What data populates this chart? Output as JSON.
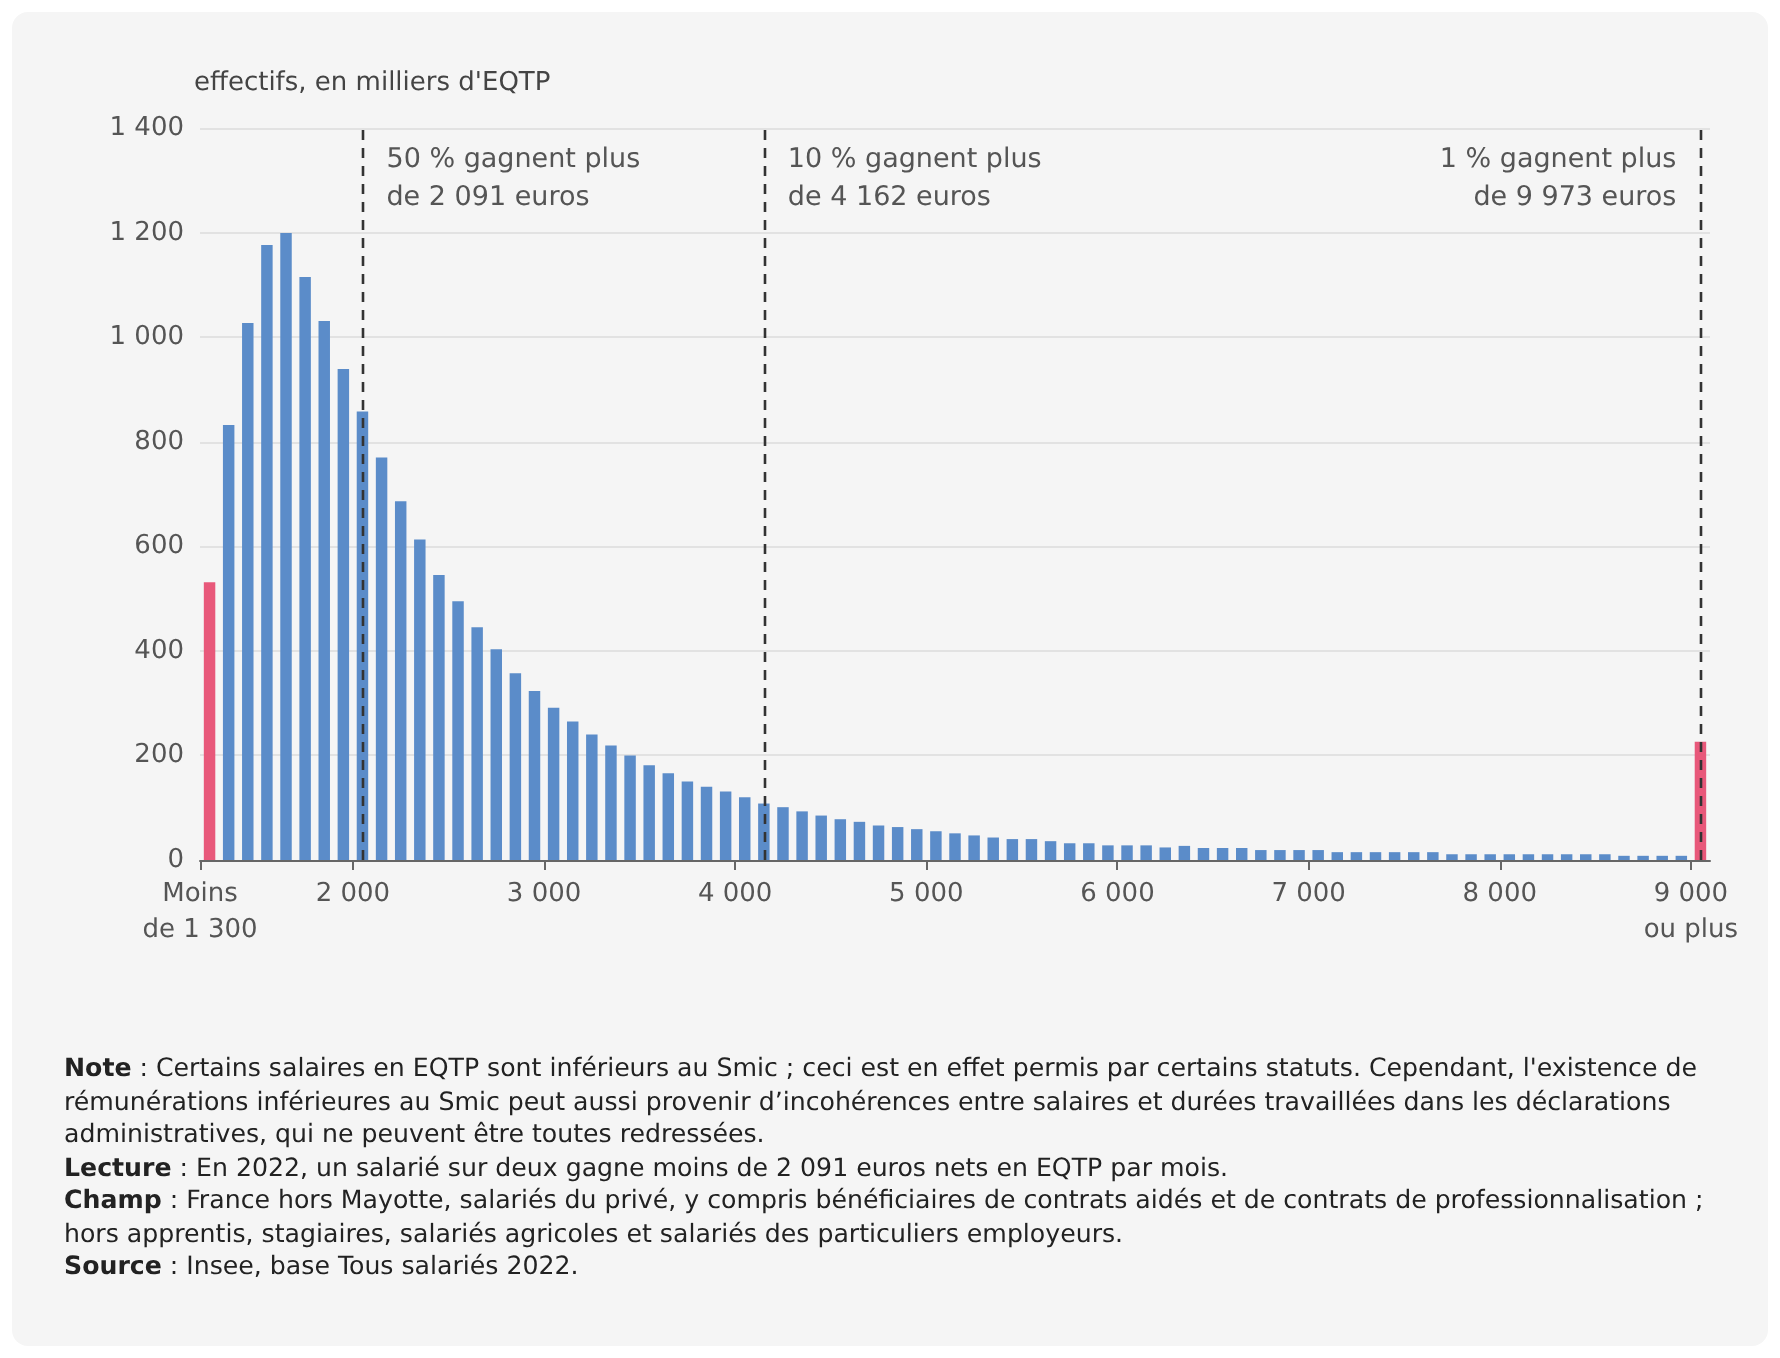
{
  "chart_data": {
    "type": "histogram",
    "ylabel": "effectifs, en milliers d'EQTP",
    "bins": [
      1200,
      1300,
      1400,
      1500,
      1600,
      1700,
      1800,
      1900,
      2000,
      2100,
      2200,
      2300,
      2400,
      2500,
      2600,
      2700,
      2800,
      2900,
      3000,
      3100,
      3200,
      3300,
      3400,
      3500,
      3600,
      3700,
      3800,
      3900,
      4000,
      4100,
      4200,
      4300,
      4400,
      4500,
      4600,
      4700,
      4800,
      4900,
      5000,
      5100,
      5200,
      5300,
      5400,
      5500,
      5600,
      5700,
      5800,
      5900,
      6000,
      6100,
      6200,
      6300,
      6400,
      6500,
      6600,
      6700,
      6800,
      6900,
      7000,
      7100,
      7200,
      7300,
      7400,
      7500,
      7600,
      7700,
      7800,
      7900,
      8000,
      8100,
      8200,
      8300,
      8400,
      8500,
      8600,
      8700,
      8800,
      8900,
      9000,
      9100
    ],
    "values": [
      531,
      832,
      1027,
      1176,
      1199,
      1115,
      1031,
      939,
      858,
      770,
      686,
      613,
      545,
      495,
      445,
      403,
      357,
      323,
      291,
      265,
      240,
      219,
      200,
      181,
      166,
      150,
      140,
      131,
      120,
      108,
      101,
      93,
      85,
      78,
      73,
      66,
      63,
      59,
      55,
      51,
      47,
      43,
      40,
      40,
      36,
      32,
      32,
      28,
      28,
      28,
      24,
      27,
      23,
      23,
      23,
      19,
      19,
      19,
      19,
      15,
      15,
      15,
      15,
      15,
      15,
      11,
      11,
      11,
      11,
      11,
      11,
      11,
      11,
      11,
      8,
      8,
      8,
      8,
      226
    ],
    "colors": [
      "#e8587a",
      "#5b8cc9",
      "#5b8cc9",
      "#5b8cc9",
      "#5b8cc9",
      "#5b8cc9",
      "#5b8cc9",
      "#5b8cc9",
      "#5b8cc9",
      "#5b8cc9",
      "#5b8cc9",
      "#5b8cc9",
      "#5b8cc9",
      "#5b8cc9",
      "#5b8cc9",
      "#5b8cc9",
      "#5b8cc9",
      "#5b8cc9",
      "#5b8cc9",
      "#5b8cc9",
      "#5b8cc9",
      "#5b8cc9",
      "#5b8cc9",
      "#5b8cc9",
      "#5b8cc9",
      "#5b8cc9",
      "#5b8cc9",
      "#5b8cc9",
      "#5b8cc9",
      "#5b8cc9",
      "#5b8cc9",
      "#5b8cc9",
      "#5b8cc9",
      "#5b8cc9",
      "#5b8cc9",
      "#5b8cc9",
      "#5b8cc9",
      "#5b8cc9",
      "#5b8cc9",
      "#5b8cc9",
      "#5b8cc9",
      "#5b8cc9",
      "#5b8cc9",
      "#5b8cc9",
      "#5b8cc9",
      "#5b8cc9",
      "#5b8cc9",
      "#5b8cc9",
      "#5b8cc9",
      "#5b8cc9",
      "#5b8cc9",
      "#5b8cc9",
      "#5b8cc9",
      "#5b8cc9",
      "#5b8cc9",
      "#5b8cc9",
      "#5b8cc9",
      "#5b8cc9",
      "#5b8cc9",
      "#5b8cc9",
      "#5b8cc9",
      "#5b8cc9",
      "#5b8cc9",
      "#5b8cc9",
      "#5b8cc9",
      "#5b8cc9",
      "#5b8cc9",
      "#5b8cc9",
      "#5b8cc9",
      "#5b8cc9",
      "#5b8cc9",
      "#5b8cc9",
      "#5b8cc9",
      "#5b8cc9",
      "#5b8cc9",
      "#5b8cc9",
      "#5b8cc9",
      "#5b8cc9",
      "#e8587a"
    ],
    "xlim": [
      1200,
      9100
    ],
    "xticks": [
      {
        "value": 1200,
        "label": "Moins\nde 1 300"
      },
      {
        "value": 2000,
        "label": "2 000"
      },
      {
        "value": 3000,
        "label": "3 000"
      },
      {
        "value": 4000,
        "label": "4 000"
      },
      {
        "value": 5000,
        "label": "5 000"
      },
      {
        "value": 6000,
        "label": "6 000"
      },
      {
        "value": 7000,
        "label": "7 000"
      },
      {
        "value": 8000,
        "label": "8 000"
      },
      {
        "value": 9000,
        "label": "9 000\nou plus"
      }
    ],
    "ylim": [
      0,
      1400
    ],
    "yticks": [
      0,
      200,
      400,
      600,
      800,
      {
        "value": 1000,
        "label": "1 000"
      },
      {
        "value": 1200,
        "label": "1 200"
      },
      {
        "value": 1400,
        "label": "1 400"
      }
    ],
    "grid": "y",
    "ref_lines": [
      {
        "axis": "x",
        "value": 2050,
        "label": "50 % gagnent plus\nde 2 091 euros",
        "color": "#333333",
        "line_style": "dashed"
      },
      {
        "axis": "x",
        "value": 4150,
        "label": "10 % gagnent plus\nde 4 162 euros",
        "color": "#333333",
        "line_style": "dashed"
      },
      {
        "axis": "x",
        "value": 9050,
        "label": "1 % gagnent plus\nde 9 973 euros",
        "color": "#333333",
        "line_style": "dashed"
      }
    ],
    "annotations": [
      "Note : Certains salaires en EQTP sont inférieurs au Smic ; ceci est en effet permis par certains statuts. Cependant, l'existence de rémunérations inférieures au Smic peut aussi provenir d’incohérences entre salaires et durées travaillées dans les déclarations administratives, qui ne peuvent être toutes redressées.",
      "Lecture : En 2022, un salarié sur deux gagne moins de 2 091 euros nets en EQTP par mois.",
      "Champ : France hors Mayotte, salariés du privé, y compris bénéficiaires de contrats aidés et de contrats de professionnalisation ; hors apprentis, stagiaires, salariés agricoles et salariés des particuliers employeurs.",
      "Source : Insee, base Tous salariés 2022."
    ]
  }
}
